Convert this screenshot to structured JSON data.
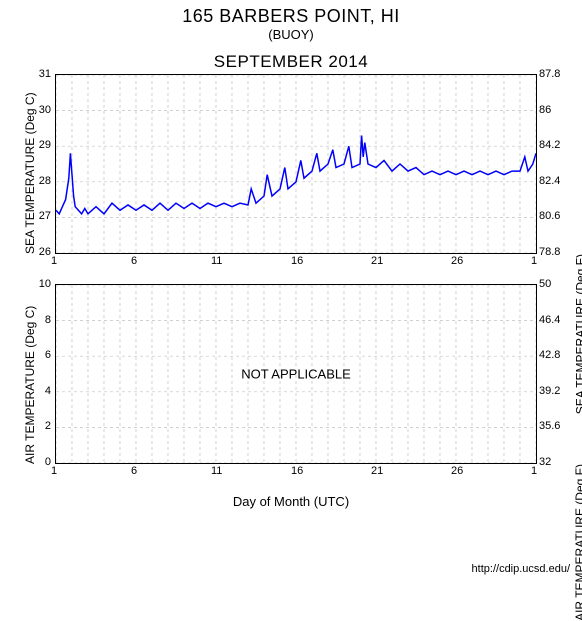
{
  "title": "165 BARBERS POINT, HI",
  "subtitle": "(BUOY)",
  "month_title": "SEPTEMBER 2014",
  "xlabel": "Day of Month (UTC)",
  "footer": "http://cdip.ucsd.edu/",
  "background_color": "#ffffff",
  "grid_color": "#c0c0c0",
  "series_color": "#0000ff",
  "border_color": "#000000",
  "text_color": "#000000",
  "title_fontsize": 18,
  "subtitle_fontsize": 13,
  "month_fontsize": 17,
  "label_fontsize": 12,
  "tick_fontsize": 11,
  "x_ticks": [
    1,
    6,
    11,
    16,
    21,
    26,
    1
  ],
  "x_grid_minor_step": 1,
  "xlim": [
    1,
    31
  ],
  "top_chart": {
    "type": "line",
    "ylabel_left": "SEA TEMPERATURE (Deg C)",
    "ylabel_right": "SEA TEMPERATURE (Deg F)",
    "ylim_left": [
      26,
      31
    ],
    "ytick_step_left": 1,
    "yticks_left": [
      26,
      27,
      28,
      29,
      30,
      31
    ],
    "yticks_right": [
      78.8,
      80.6,
      82.4,
      84.2,
      86,
      87.8
    ],
    "line_width": 1.5,
    "x": [
      1.0,
      1.2,
      1.4,
      1.6,
      1.8,
      1.9,
      2.0,
      2.1,
      2.2,
      2.4,
      2.6,
      2.8,
      3.0,
      3.5,
      4.0,
      4.5,
      5.0,
      5.5,
      6.0,
      6.5,
      7.0,
      7.5,
      8.0,
      8.5,
      9.0,
      9.5,
      10.0,
      10.5,
      11.0,
      11.5,
      12.0,
      12.5,
      13.0,
      13.2,
      13.5,
      14.0,
      14.2,
      14.5,
      15.0,
      15.3,
      15.5,
      16.0,
      16.3,
      16.5,
      17.0,
      17.3,
      17.5,
      18.0,
      18.3,
      18.5,
      19.0,
      19.3,
      19.5,
      20.0,
      20.1,
      20.2,
      20.3,
      20.5,
      21.0,
      21.5,
      22.0,
      22.5,
      23.0,
      23.5,
      24.0,
      24.5,
      25.0,
      25.5,
      26.0,
      26.5,
      27.0,
      27.5,
      28.0,
      28.5,
      29.0,
      29.5,
      30.0,
      30.3,
      30.5,
      30.8,
      31.0
    ],
    "y": [
      27.2,
      27.1,
      27.3,
      27.5,
      28.1,
      28.8,
      28.2,
      27.6,
      27.3,
      27.2,
      27.1,
      27.25,
      27.1,
      27.3,
      27.1,
      27.4,
      27.2,
      27.35,
      27.2,
      27.35,
      27.2,
      27.4,
      27.2,
      27.4,
      27.25,
      27.4,
      27.25,
      27.4,
      27.3,
      27.4,
      27.3,
      27.4,
      27.35,
      27.8,
      27.4,
      27.6,
      28.2,
      27.6,
      27.8,
      28.4,
      27.8,
      28.0,
      28.6,
      28.1,
      28.3,
      28.8,
      28.3,
      28.5,
      28.9,
      28.4,
      28.5,
      29.0,
      28.4,
      28.5,
      29.3,
      28.7,
      29.1,
      28.5,
      28.4,
      28.6,
      28.3,
      28.5,
      28.3,
      28.4,
      28.2,
      28.3,
      28.2,
      28.3,
      28.2,
      28.3,
      28.2,
      28.3,
      28.2,
      28.3,
      28.2,
      28.3,
      28.3,
      28.7,
      28.3,
      28.5,
      28.8
    ]
  },
  "bottom_chart": {
    "type": "line",
    "ylabel_left": "AIR TEMPERATURE (Deg C)",
    "ylabel_right": "AIR TEMPERATURE (Deg F)",
    "ylim_left": [
      0,
      10
    ],
    "ytick_step_left": 2,
    "yticks_left": [
      0,
      2,
      4,
      6,
      8,
      10
    ],
    "yticks_right": [
      32,
      35.6,
      39.2,
      42.8,
      46.4,
      50
    ],
    "center_text": "NOT APPLICABLE",
    "line_width": 1.5,
    "x": [],
    "y": []
  }
}
